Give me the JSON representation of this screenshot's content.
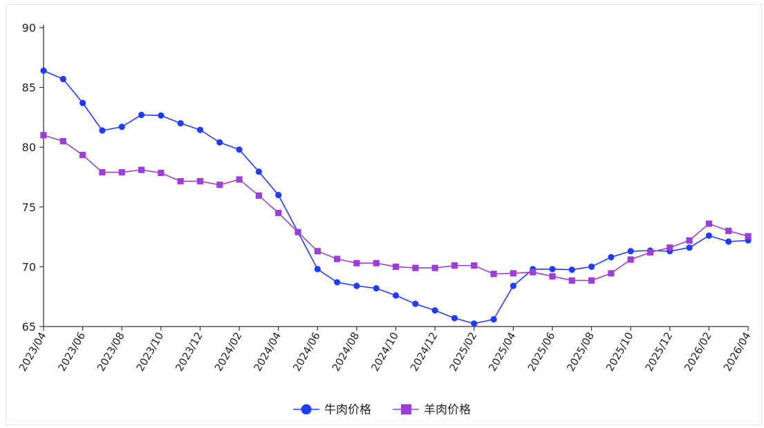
{
  "chart_data": {
    "type": "line",
    "x": [
      "2023/04",
      "2023/05",
      "2023/06",
      "2023/07",
      "2023/08",
      "2023/09",
      "2023/10",
      "2023/11",
      "2023/12",
      "2024/01",
      "2024/02",
      "2024/03",
      "2024/04",
      "2024/05",
      "2024/06",
      "2024/07",
      "2024/08",
      "2024/09",
      "2024/10",
      "2024/11",
      "2024/12",
      "2025/01",
      "2025/02",
      "2025/03",
      "2025/04",
      "2025/05",
      "2025/06",
      "2025/07",
      "2025/08",
      "2025/09",
      "2025/10",
      "2025/11",
      "2025/12",
      "2026/01",
      "2026/02",
      "2026/03",
      "2026/04"
    ],
    "x_tick_labels": [
      "2023/04",
      "2023/06",
      "2023/08",
      "2023/10",
      "2023/12",
      "2024/02",
      "2024/04",
      "2024/06",
      "2024/08",
      "2024/10",
      "2024/12",
      "2025/02",
      "2025/04",
      "2025/06",
      "2025/08",
      "2025/10",
      "2025/12",
      "2026/02",
      "2026/04"
    ],
    "series": [
      {
        "name": "牛肉价格",
        "color": "#1f3cff",
        "marker": "circle",
        "values": [
          86.4,
          85.7,
          83.7,
          81.4,
          81.7,
          82.7,
          82.65,
          82.0,
          81.45,
          80.4,
          79.8,
          77.95,
          76.0,
          72.9,
          69.8,
          68.7,
          68.4,
          68.2,
          67.6,
          66.9,
          66.35,
          65.7,
          65.25,
          65.6,
          68.4,
          69.8,
          69.8,
          69.75,
          70.0,
          70.8,
          71.3,
          71.35,
          71.3,
          71.6,
          72.6,
          72.1,
          72.2
        ]
      },
      {
        "name": "羊肉价格",
        "color": "#9b3fd6",
        "marker": "square",
        "values": [
          81.0,
          80.5,
          79.35,
          77.9,
          77.9,
          78.1,
          77.85,
          77.15,
          77.15,
          76.85,
          77.3,
          75.95,
          74.5,
          72.9,
          71.3,
          70.65,
          70.3,
          70.3,
          70.0,
          69.9,
          69.9,
          70.1,
          70.1,
          69.4,
          69.45,
          69.55,
          69.2,
          68.85,
          68.85,
          69.45,
          70.6,
          71.2,
          71.6,
          72.2,
          73.6,
          73.0,
          72.55
        ]
      }
    ],
    "y_ticks": [
      "65",
      "70",
      "75",
      "80",
      "85",
      "90"
    ],
    "ylim": [
      65,
      90
    ],
    "grid": false,
    "legend_position": "bottom-center"
  }
}
